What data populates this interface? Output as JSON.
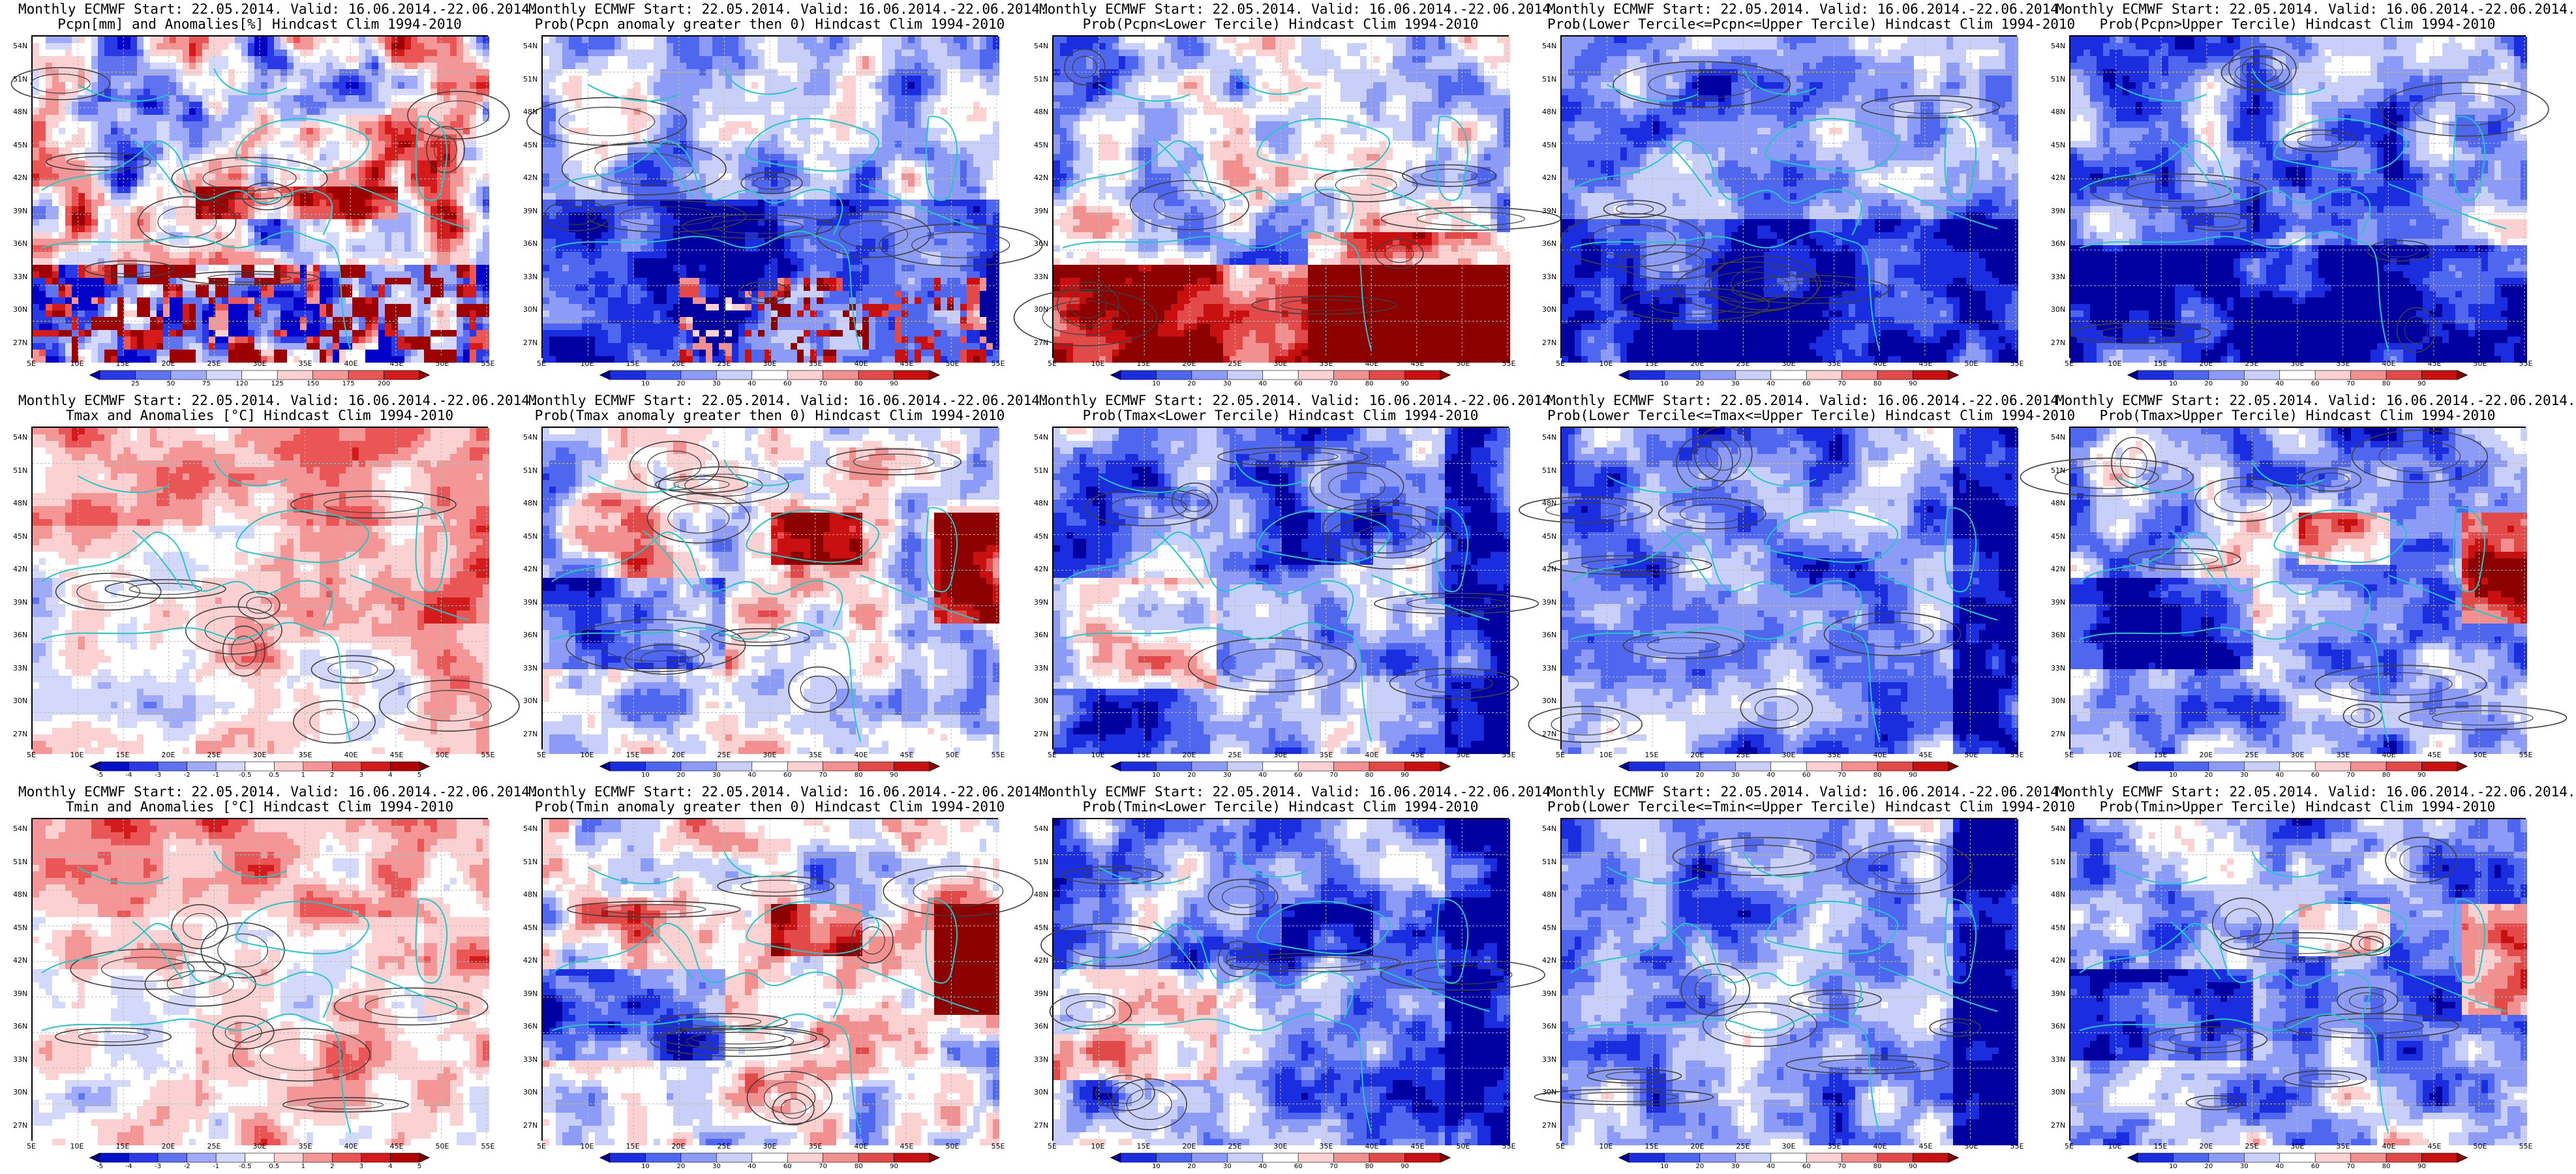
{
  "rows": [
    {
      "variable": "pcpn",
      "panels": [
        {
          "line1": "Monthly ECMWF Start: 22.05.2014. Valid: 16.06.2014.-22.06.2014.",
          "line2": "Pcpn[mm] and Anomalies[%] Hindcast Clim 1994-2010",
          "scale": "anom_pct",
          "pattern": "pcpn_anom"
        },
        {
          "line1": "Monthly ECMWF Start: 22.05.2014. Valid: 16.06.2014.-22.06.2014.",
          "line2": "Prob(Pcpn anomaly greater then 0) Hindcast Clim 1994-2010",
          "scale": "prob",
          "pattern": "pcpn_p0"
        },
        {
          "line1": "Monthly ECMWF Start: 22.05.2014. Valid: 16.06.2014.-22.06.2014.",
          "line2": "Prob(Pcpn<Lower Tercile) Hindcast Clim 1994-2010",
          "scale": "prob",
          "pattern": "pcpn_low"
        },
        {
          "line1": "Monthly ECMWF Start: 22.05.2014. Valid: 16.06.2014.-22.06.2014.",
          "line2": "Prob(Lower Tercile<=Pcpn<=Upper Tercile) Hindcast Clim 1994-2010",
          "scale": "prob",
          "pattern": "pcpn_mid"
        },
        {
          "line1": "Monthly ECMWF Start: 22.05.2014. Valid: 16.06.2014.-22.06.2014.",
          "line2": "Prob(Pcpn>Upper Tercile) Hindcast Clim 1994-2010",
          "scale": "prob",
          "pattern": "pcpn_up"
        }
      ]
    },
    {
      "variable": "tmax",
      "panels": [
        {
          "line1": "Monthly ECMWF Start: 22.05.2014. Valid: 16.06.2014.-22.06.2014.",
          "line2": "Tmax and Anomalies [°C] Hindcast Clim 1994-2010",
          "scale": "anom_c",
          "pattern": "t_anom"
        },
        {
          "line1": "Monthly ECMWF Start: 22.05.2014. Valid: 16.06.2014.-22.06.2014.",
          "line2": "Prob(Tmax anomaly greater then 0) Hindcast Clim 1994-2010",
          "scale": "prob",
          "pattern": "t_p0"
        },
        {
          "line1": "Monthly ECMWF Start: 22.05.2014. Valid: 16.06.2014.-22.06.2014.",
          "line2": "Prob(Tmax<Lower Tercile) Hindcast Clim 1994-2010",
          "scale": "prob",
          "pattern": "t_low"
        },
        {
          "line1": "Monthly ECMWF Start: 22.05.2014. Valid: 16.06.2014.-22.06.2014.",
          "line2": "Prob(Lower Tercile<=Tmax<=Upper Tercile) Hindcast Clim 1994-2010",
          "scale": "prob",
          "pattern": "t_mid"
        },
        {
          "line1": "Monthly ECMWF Start: 22.05.2014. Valid: 16.06.2014.-22.06.2014.",
          "line2": "Prob(Tmax>Upper Tercile) Hindcast Clim 1994-2010",
          "scale": "prob",
          "pattern": "t_up"
        }
      ]
    },
    {
      "variable": "tmin",
      "panels": [
        {
          "line1": "Monthly ECMWF Start: 22.05.2014. Valid: 16.06.2014.-22.06.2014.",
          "line2": "Tmin and Anomalies [°C] Hindcast Clim 1994-2010",
          "scale": "anom_c",
          "pattern": "t_anom"
        },
        {
          "line1": "Monthly ECMWF Start: 22.05.2014. Valid: 16.06.2014.-22.06.2014.",
          "line2": "Prob(Tmin anomaly greater then 0) Hindcast Clim 1994-2010",
          "scale": "prob",
          "pattern": "t_p0"
        },
        {
          "line1": "Monthly ECMWF Start: 22.05.2014. Valid: 16.06.2014.-22.06.2014.",
          "line2": "Prob(Tmin<Lower Tercile) Hindcast Clim 1994-2010",
          "scale": "prob",
          "pattern": "t_low"
        },
        {
          "line1": "Monthly ECMWF Start: 22.05.2014. Valid: 16.06.2014.-22.06.2014.",
          "line2": "Prob(Lower Tercile<=Tmin<=Upper Tercile) Hindcast Clim 1994-2010",
          "scale": "prob",
          "pattern": "t_mid"
        },
        {
          "line1": "Monthly ECMWF Start: 22.05.2014. Valid: 16.06.2014.-22.06.2014.",
          "line2": "Prob(Tmin>Upper Tercile) Hindcast Clim 1994-2010",
          "scale": "prob",
          "pattern": "t_up"
        }
      ]
    }
  ],
  "lat_labels": [
    "54N",
    "51N",
    "48N",
    "45N",
    "42N",
    "39N",
    "36N",
    "33N",
    "30N",
    "27N"
  ],
  "lon_labels": [
    "5E",
    "10E",
    "15E",
    "20E",
    "25E",
    "30E",
    "35E",
    "40E",
    "45E",
    "50E",
    "55E"
  ],
  "scales": {
    "anom_pct": {
      "ticks": [
        "25",
        "50",
        "75",
        "120",
        "125",
        "150",
        "175",
        "200"
      ],
      "colors": [
        "#0000c8",
        "#2a39e6",
        "#5f73f0",
        "#9faaf8",
        "#d4d9fb",
        "#ffffff",
        "#fbd1d1",
        "#f59696",
        "#ea5555",
        "#d41b1b",
        "#9c0000"
      ]
    },
    "anom_c": {
      "ticks": [
        "-5",
        "-4",
        "-3",
        "-2",
        "-1",
        "-0.5",
        "0.5",
        "1",
        "2",
        "3",
        "4",
        "5"
      ],
      "colors": [
        "#00008c",
        "#0010c8",
        "#2a39e6",
        "#5f73f0",
        "#9faaf8",
        "#d4d9fb",
        "#ffffff",
        "#fbd1d1",
        "#f59696",
        "#ea5555",
        "#d41b1b",
        "#b00000",
        "#7a0000"
      ]
    },
    "prob": {
      "ticks": [
        "10",
        "20",
        "30",
        "40",
        "60",
        "70",
        "80",
        "90"
      ],
      "colors": [
        "#0000a0",
        "#1a2ee0",
        "#4f66ee",
        "#8c9cf6",
        "#c8d0fa",
        "#ffffff",
        "#fbd1d1",
        "#f29090",
        "#e24a4a",
        "#c81010",
        "#8c0000"
      ]
    }
  },
  "colors": {
    "coast": "#22c8c8",
    "contour": "#404040",
    "grid": "#bbbbbb"
  }
}
